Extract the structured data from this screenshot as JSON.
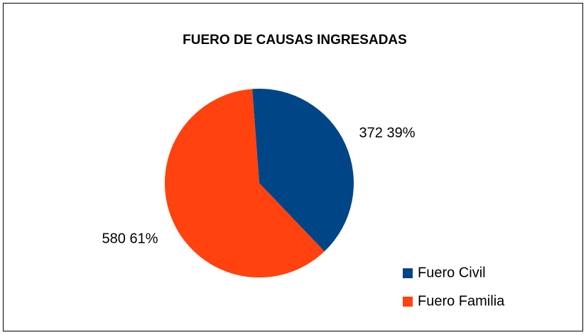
{
  "chart_data": {
    "type": "pie",
    "title": "FUERO DE CAUSAS INGRESADAS",
    "categories": [
      "Fuero Civil",
      "Fuero Familia"
    ],
    "values": [
      372,
      580
    ],
    "value_labels": [
      "372 39%",
      "580 61%"
    ],
    "colors": [
      "#004586",
      "#ff420e"
    ],
    "legend": "right"
  }
}
